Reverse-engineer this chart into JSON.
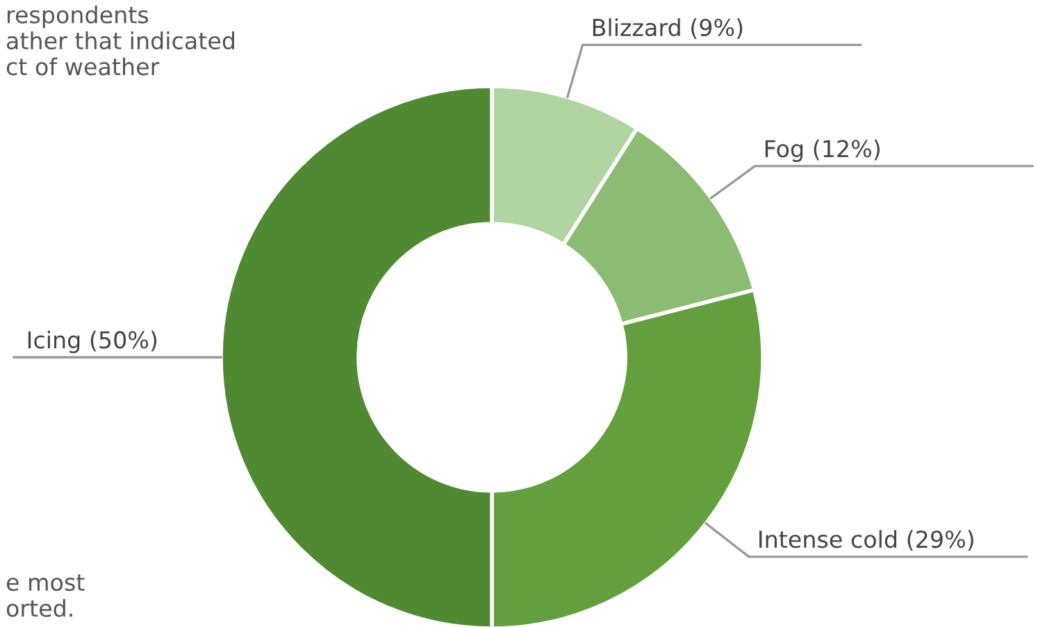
{
  "chart_data": {
    "type": "donut",
    "categories": [
      "Blizzard (9%)",
      "Fog (12%)",
      "Intense cold (29%)",
      "Icing (50%)"
    ],
    "values": [
      9,
      12,
      29,
      50
    ],
    "colors": [
      "#b1d5a1",
      "#8cbb73",
      "#649f3e",
      "#4f8a32"
    ],
    "annotations": [
      "respondents\nather that indicated\nct of weather",
      "e most\norted."
    ],
    "legend": false
  }
}
